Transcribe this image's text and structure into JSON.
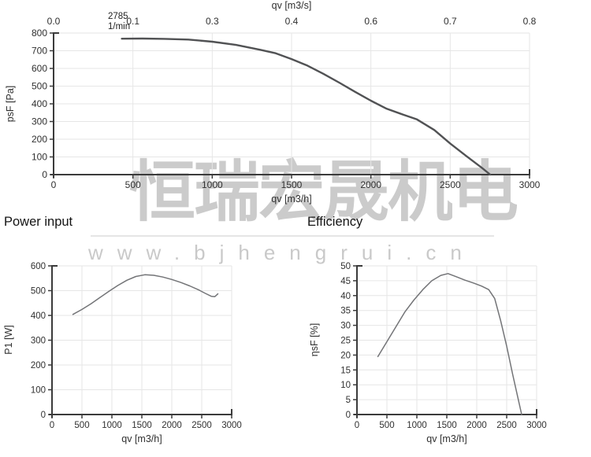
{
  "watermark": {
    "cjk_text": "恒瑞宏晟机电",
    "url_text": "www.bjhengrui.cn"
  },
  "colors": {
    "background": "#ffffff",
    "grid": "#e6e6e6",
    "axis": "#3b3b3b",
    "tick_text": "#303030",
    "curve_main": "#515254",
    "curve_sub": "#737477",
    "watermark": "#c9c9c9",
    "heading_text": "#141414",
    "annotation_text": "#1f1f1f"
  },
  "chart_data": [
    {
      "id": "psf",
      "type": "line",
      "title": "",
      "xlabel": "qv [m3/h]",
      "ylabel": "psF [Pa]",
      "x2label": "qv [m3/s]",
      "xlim": [
        0,
        3000
      ],
      "ylim": [
        0,
        800
      ],
      "xticks": [
        0,
        500,
        1000,
        1500,
        2000,
        2500,
        3000
      ],
      "yticks": [
        0,
        100,
        200,
        300,
        400,
        500,
        600,
        700,
        800
      ],
      "x2tick_labels": [
        "0.0",
        "0.1",
        "0.3",
        "0.4",
        "0.6",
        "0.7",
        "0.8"
      ],
      "annotation": {
        "value": "2785",
        "unit": "1/min"
      },
      "grid": true,
      "legend": "none",
      "points": [
        [
          430,
          768
        ],
        [
          560,
          769
        ],
        [
          700,
          767
        ],
        [
          850,
          763
        ],
        [
          1000,
          751
        ],
        [
          1150,
          733
        ],
        [
          1300,
          706
        ],
        [
          1400,
          686
        ],
        [
          1500,
          653
        ],
        [
          1600,
          616
        ],
        [
          1700,
          570
        ],
        [
          1800,
          520
        ],
        [
          1900,
          468
        ],
        [
          2000,
          418
        ],
        [
          2100,
          372
        ],
        [
          2200,
          340
        ],
        [
          2290,
          312
        ],
        [
          2400,
          252
        ],
        [
          2500,
          176
        ],
        [
          2600,
          106
        ],
        [
          2700,
          38
        ],
        [
          2752,
          0
        ]
      ]
    },
    {
      "id": "power",
      "type": "line",
      "title": "Power input",
      "xlabel": "qv [m3/h]",
      "ylabel": "P1 [W]",
      "xlim": [
        0,
        3000
      ],
      "ylim": [
        0,
        600
      ],
      "xticks": [
        0,
        500,
        1000,
        1500,
        2000,
        2500,
        3000
      ],
      "yticks": [
        0,
        100,
        200,
        300,
        400,
        500,
        600
      ],
      "grid": true,
      "legend": "none",
      "points": [
        [
          350,
          404
        ],
        [
          500,
          424
        ],
        [
          650,
          447
        ],
        [
          800,
          472
        ],
        [
          950,
          497
        ],
        [
          1100,
          521
        ],
        [
          1250,
          542
        ],
        [
          1400,
          557
        ],
        [
          1550,
          564
        ],
        [
          1700,
          562
        ],
        [
          1850,
          555
        ],
        [
          2000,
          545
        ],
        [
          2150,
          533
        ],
        [
          2300,
          519
        ],
        [
          2450,
          503
        ],
        [
          2560,
          489
        ],
        [
          2660,
          477
        ],
        [
          2720,
          476
        ],
        [
          2770,
          487
        ]
      ]
    },
    {
      "id": "eff",
      "type": "line",
      "title": "Efficiency",
      "xlabel": "qv [m3/h]",
      "ylabel": "ηsF [%]",
      "xlim": [
        0,
        3000
      ],
      "ylim": [
        0,
        50
      ],
      "xticks": [
        0,
        500,
        1000,
        1500,
        2000,
        2500,
        3000
      ],
      "yticks": [
        0,
        5,
        10,
        15,
        20,
        25,
        30,
        35,
        40,
        45,
        50
      ],
      "grid": true,
      "legend": "none",
      "points": [
        [
          350,
          19.5
        ],
        [
          500,
          24.5
        ],
        [
          650,
          29.5
        ],
        [
          800,
          34.5
        ],
        [
          950,
          38.5
        ],
        [
          1100,
          42
        ],
        [
          1250,
          45
        ],
        [
          1400,
          46.8
        ],
        [
          1520,
          47.4
        ],
        [
          1650,
          46.4
        ],
        [
          1800,
          45.2
        ],
        [
          1950,
          44.2
        ],
        [
          2080,
          43.2
        ],
        [
          2200,
          42
        ],
        [
          2300,
          39
        ],
        [
          2400,
          31.5
        ],
        [
          2500,
          23
        ],
        [
          2600,
          13.5
        ],
        [
          2700,
          4.5
        ],
        [
          2750,
          0
        ]
      ]
    }
  ]
}
